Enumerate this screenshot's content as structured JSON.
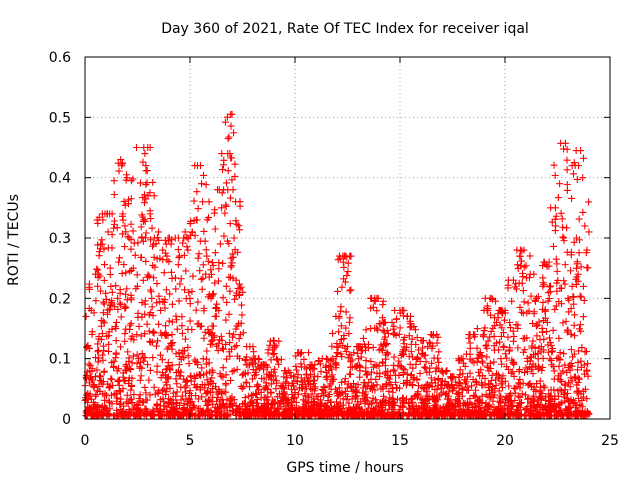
{
  "chart_data": {
    "type": "scatter",
    "title": "Day 360 of 2021, Rate Of TEC Index for receiver iqal",
    "xlabel": "GPS time / hours",
    "ylabel": "ROTI / TECUs",
    "xlim": [
      0,
      25
    ],
    "ylim": [
      0,
      0.6
    ],
    "xticks": [
      "0",
      "5",
      "10",
      "15",
      "20",
      "25"
    ],
    "yticks": [
      "0",
      "0.1",
      "0.2",
      "0.3",
      "0.4",
      "0.5",
      "0.6"
    ],
    "grid": true,
    "marker": "+",
    "color": "#ff0000",
    "series": [
      {
        "name": "ROTI",
        "note": "dense cloud of samples covering 0–24 h; representative points listed",
        "points": [
          [
            0.05,
            0.17
          ],
          [
            0.1,
            0.12
          ],
          [
            0.3,
            0.18
          ],
          [
            0.5,
            0.24
          ],
          [
            0.6,
            0.22
          ],
          [
            0.75,
            0.29
          ],
          [
            0.85,
            0.33
          ],
          [
            0.95,
            0.34
          ],
          [
            1.1,
            0.31
          ],
          [
            1.2,
            0.25
          ],
          [
            1.3,
            0.21
          ],
          [
            1.5,
            0.16
          ],
          [
            1.6,
            0.26
          ],
          [
            1.7,
            0.43
          ],
          [
            1.8,
            0.34
          ],
          [
            1.9,
            0.32
          ],
          [
            2.0,
            0.4
          ],
          [
            2.1,
            0.3
          ],
          [
            2.3,
            0.25
          ],
          [
            2.5,
            0.22
          ],
          [
            2.7,
            0.3
          ],
          [
            2.8,
            0.45
          ],
          [
            2.85,
            0.44
          ],
          [
            2.9,
            0.42
          ],
          [
            3.0,
            0.37
          ],
          [
            3.1,
            0.34
          ],
          [
            3.3,
            0.3
          ],
          [
            3.5,
            0.31
          ],
          [
            3.7,
            0.28
          ],
          [
            3.9,
            0.27
          ],
          [
            4.1,
            0.29
          ],
          [
            4.3,
            0.3
          ],
          [
            4.5,
            0.27
          ],
          [
            4.7,
            0.3
          ],
          [
            4.9,
            0.28
          ],
          [
            5.1,
            0.31
          ],
          [
            5.3,
            0.33
          ],
          [
            5.5,
            0.42
          ],
          [
            5.55,
            0.39
          ],
          [
            5.6,
            0.36
          ],
          [
            5.8,
            0.27
          ],
          [
            6.0,
            0.2
          ],
          [
            6.2,
            0.17
          ],
          [
            6.5,
            0.35
          ],
          [
            6.6,
            0.38
          ],
          [
            6.8,
            0.44
          ],
          [
            6.9,
            0.44
          ],
          [
            7.0,
            0.505
          ],
          [
            7.05,
            0.38
          ],
          [
            7.1,
            0.3
          ],
          [
            7.2,
            0.23
          ],
          [
            7.4,
            0.14
          ],
          [
            7.7,
            0.12
          ],
          [
            8.0,
            0.1
          ],
          [
            8.5,
            0.09
          ],
          [
            9.0,
            0.13
          ],
          [
            9.5,
            0.08
          ],
          [
            10.0,
            0.07
          ],
          [
            10.3,
            0.11
          ],
          [
            10.8,
            0.09
          ],
          [
            11.3,
            0.1
          ],
          [
            11.8,
            0.1
          ],
          [
            12.1,
            0.17
          ],
          [
            12.3,
            0.26
          ],
          [
            12.35,
            0.27
          ],
          [
            12.5,
            0.12
          ],
          [
            12.8,
            0.11
          ],
          [
            13.2,
            0.12
          ],
          [
            13.6,
            0.15
          ],
          [
            13.9,
            0.2
          ],
          [
            14.3,
            0.16
          ],
          [
            14.7,
            0.14
          ],
          [
            15.0,
            0.18
          ],
          [
            15.5,
            0.17
          ],
          [
            16.0,
            0.13
          ],
          [
            16.5,
            0.14
          ],
          [
            17.0,
            0.08
          ],
          [
            17.5,
            0.07
          ],
          [
            18.0,
            0.1
          ],
          [
            18.5,
            0.14
          ],
          [
            19.0,
            0.18
          ],
          [
            19.3,
            0.2
          ],
          [
            19.6,
            0.16
          ],
          [
            20.0,
            0.18
          ],
          [
            20.4,
            0.23
          ],
          [
            20.7,
            0.27
          ],
          [
            20.9,
            0.28
          ],
          [
            21.2,
            0.24
          ],
          [
            21.5,
            0.2
          ],
          [
            21.8,
            0.22
          ],
          [
            22.1,
            0.26
          ],
          [
            22.4,
            0.35
          ],
          [
            22.6,
            0.39
          ],
          [
            22.65,
            0.457
          ],
          [
            22.8,
            0.3
          ],
          [
            23.0,
            0.2
          ],
          [
            23.2,
            0.22
          ],
          [
            23.4,
            0.3
          ],
          [
            23.5,
            0.42
          ],
          [
            23.6,
            0.445
          ],
          [
            23.7,
            0.4
          ],
          [
            23.8,
            0.32
          ],
          [
            23.9,
            0.28
          ],
          [
            24.0,
            0.31
          ]
        ]
      }
    ]
  }
}
